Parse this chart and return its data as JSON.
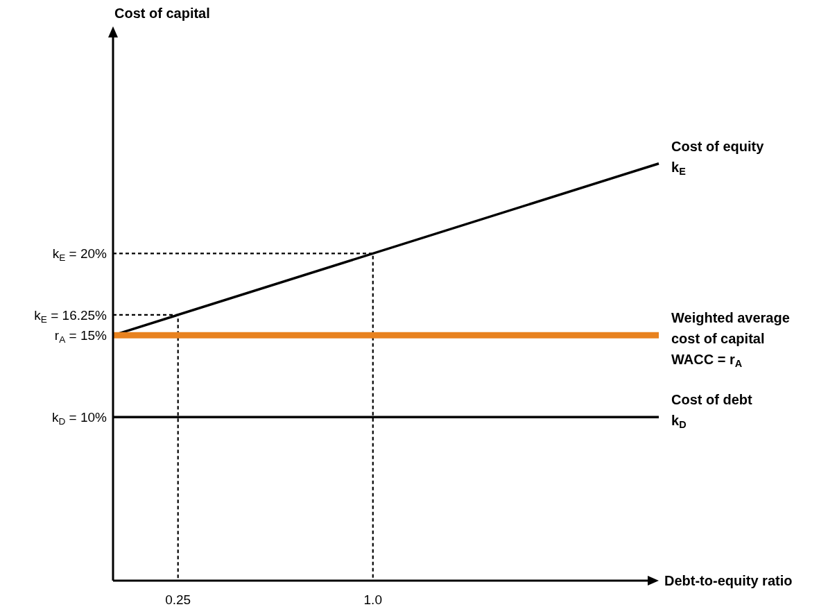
{
  "chart_data": {
    "type": "line",
    "xlabel": "Debt-to-equity ratio",
    "ylabel": "Cost of capital",
    "xlim": [
      0,
      2.1
    ],
    "ylim": [
      0,
      33.8
    ],
    "xticks": [
      0.25,
      {
        "value": 1,
        "label": "1.0"
      }
    ],
    "yticks": [
      {
        "value": 10,
        "label": "k$_{D}$ = 10%"
      },
      {
        "value": 15,
        "label": "r$_{A}$ = 15%"
      },
      {
        "value": 16.25,
        "label": "k$_{E}$ = 16.25%"
      },
      {
        "value": 20,
        "label": "k$_{E}$ = 20%"
      }
    ],
    "grid": false,
    "marker": "none",
    "series": [
      {
        "name": "Cost of equity\nk$_{E}$",
        "color": "#000000",
        "x": [
          0,
          2.1
        ],
        "values": [
          15,
          25.5
        ]
      },
      {
        "name": "Weighted average\ncost of capital\nWACC = r$_{A}$",
        "color": "#e8821e",
        "x": [
          0,
          2.1
        ],
        "values": [
          15,
          15
        ]
      },
      {
        "name": "Cost of debt\nk$_{D}$",
        "color": "#000000",
        "x": [
          0,
          2.1
        ],
        "values": [
          10,
          10
        ]
      },
      {
        "color": "#000000",
        "line_style": "dashed",
        "x": [
          0,
          0.25,
          0.25
        ],
        "values": [
          16.25,
          16.25,
          0
        ]
      },
      {
        "color": "#000000",
        "line_style": "dashed",
        "x": [
          0,
          1,
          1
        ],
        "values": [
          20,
          20,
          0
        ]
      }
    ]
  }
}
